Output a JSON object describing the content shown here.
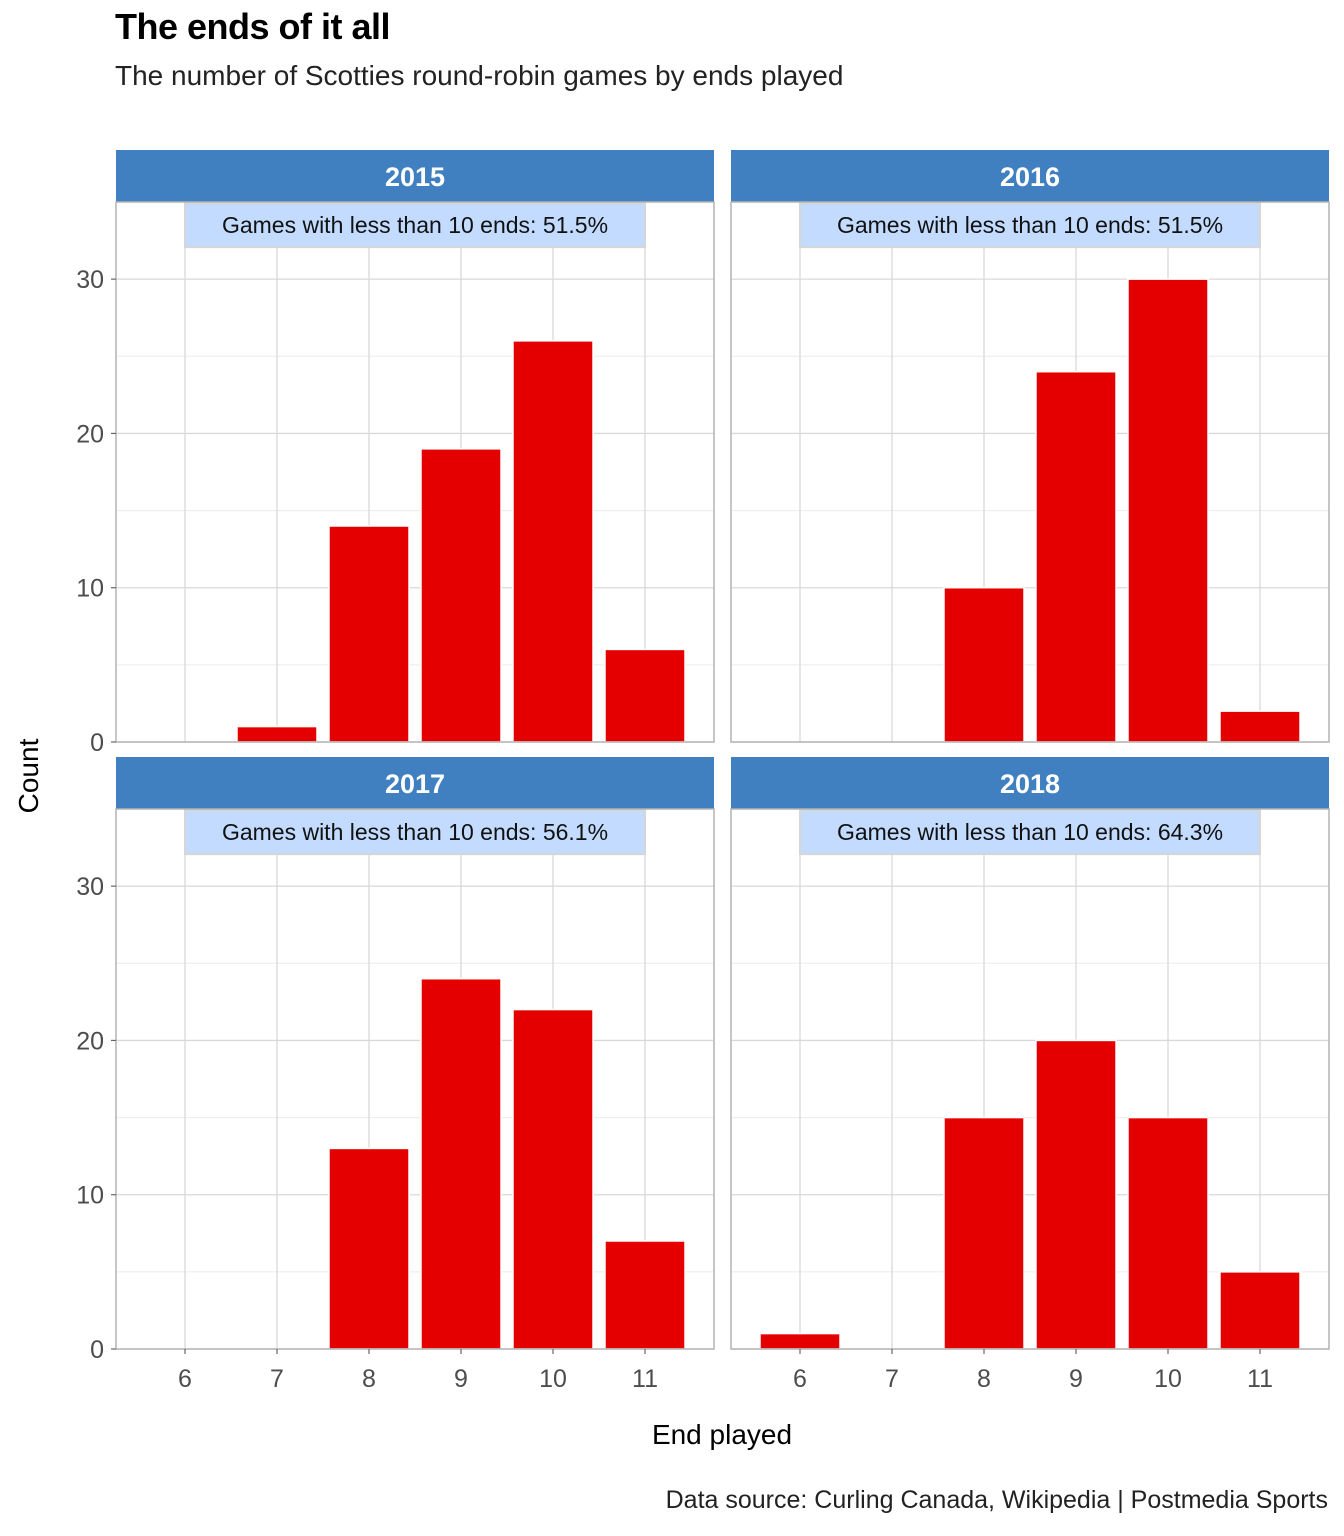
{
  "title": "The ends of it all",
  "subtitle": "The number of Scotties round-robin games by ends played",
  "caption": "Data source: Curling Canada, Wikipedia | Postmedia Sports",
  "colors": {
    "bar": "#e50000",
    "strip": "#4080c0",
    "annotation_fill": "#c2dbff"
  },
  "chart_data": {
    "type": "bar",
    "xlabel": "End played",
    "ylabel": "Count",
    "categories": [
      6,
      7,
      8,
      9,
      10,
      11
    ],
    "ylim": [
      0,
      35
    ],
    "yticks": [
      0,
      10,
      20,
      30
    ],
    "grid": true,
    "panels": [
      {
        "name": "2015",
        "values": [
          0,
          1,
          14,
          19,
          26,
          6
        ],
        "annotation": "Games with less than 10 ends: 51.5%"
      },
      {
        "name": "2016",
        "values": [
          0,
          0,
          10,
          24,
          30,
          2
        ],
        "annotation": "Games with less than 10 ends: 51.5%"
      },
      {
        "name": "2017",
        "values": [
          0,
          0,
          13,
          24,
          22,
          7
        ],
        "annotation": "Games with less than 10 ends: 56.1%"
      },
      {
        "name": "2018",
        "values": [
          1,
          0,
          15,
          20,
          15,
          5
        ],
        "annotation": "Games with less than 10 ends: 64.3%"
      }
    ]
  }
}
